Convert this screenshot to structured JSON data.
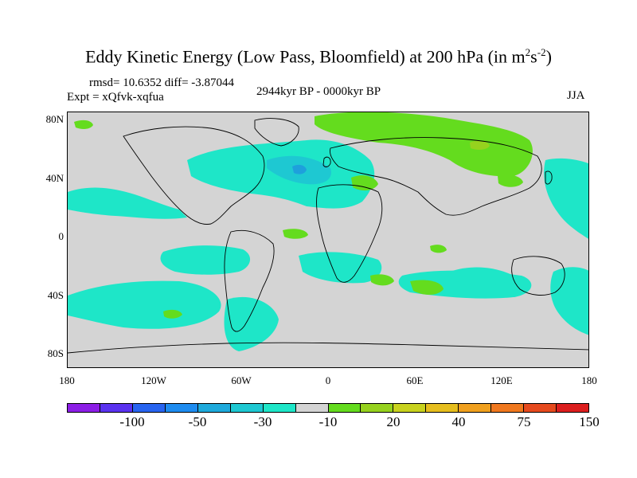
{
  "header": {
    "title_main": "Eddy Kinetic Energy (Low Pass, Bloomfield) at 200 hPa (in m",
    "title_sup1": "2",
    "title_mid": "s",
    "title_sup2": "-2",
    "title_end": ")",
    "rmsd": "rmsd= 10.6352 diff= -3.87044",
    "expt": "Expt = xQfvk-xqfua",
    "period": "2944kyr BP - 0000kyr BP",
    "season": "JJA"
  },
  "axes": {
    "y_ticks": [
      "80N",
      "40N",
      "0",
      "40S",
      "80S"
    ],
    "x_ticks": [
      "180",
      "120W",
      "60W",
      "0",
      "60E",
      "120E",
      "180"
    ]
  },
  "colors": {
    "background": "#d4d4d4",
    "neg_light": "#1ee6c8",
    "neg_mid": "#1ec8d2",
    "neg_dark": "#1ea0dc",
    "pos_light": "#64dc1e",
    "pos_mid": "#96d21e",
    "coast": "#000000"
  },
  "colorbar": {
    "colors": [
      "#8c1ee6",
      "#5a32f0",
      "#2864f0",
      "#1e8cf0",
      "#1eaadc",
      "#1ec8d2",
      "#1ee6c8",
      "#d4d4d4",
      "#64dc1e",
      "#96d21e",
      "#c8d21e",
      "#e6be1e",
      "#f0a01e",
      "#f0781e",
      "#e64a1e",
      "#dc1e1e"
    ],
    "labels": [
      "-100",
      "-50",
      "-30",
      "-10",
      "20",
      "40",
      "75",
      "150"
    ]
  }
}
